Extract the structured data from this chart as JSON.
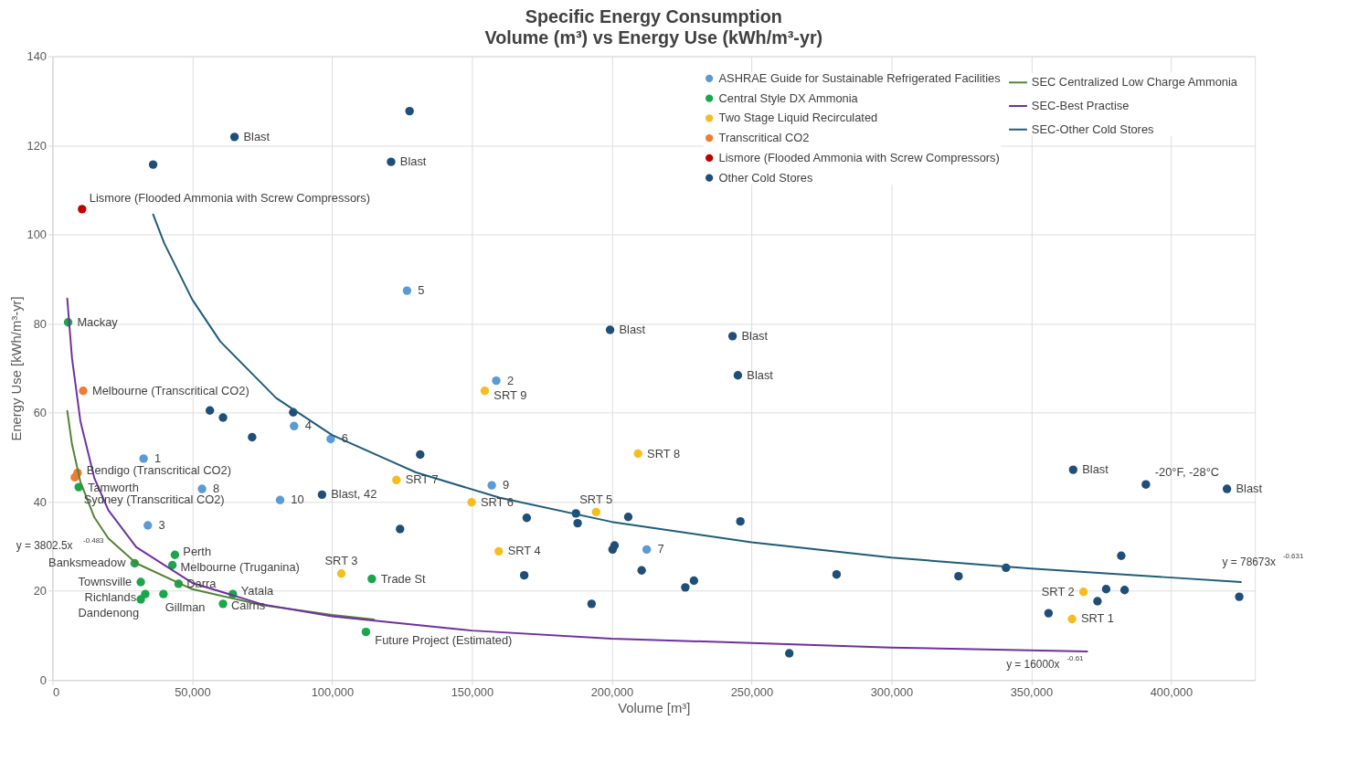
{
  "chart_data": {
    "type": "scatter",
    "title": "Specific Energy Consumption",
    "subtitle": "Volume (m³) vs Energy Use (kWh/m³-yr)",
    "xlabel": "Volume [m³]",
    "ylabel": "Energy Use [kWh/m³-yr]",
    "xlim": [
      0,
      430000
    ],
    "ylim": [
      0,
      140
    ],
    "xticks": [
      0,
      {
        "value": 50000,
        "label": "50,000"
      },
      {
        "value": 100000,
        "label": "100,000"
      },
      {
        "value": 150000,
        "label": "150,000"
      },
      {
        "value": 200000,
        "label": "200,000"
      },
      {
        "value": 250000,
        "label": "250,000"
      },
      {
        "value": 300000,
        "label": "300,000"
      },
      {
        "value": 350000,
        "label": "350,000"
      },
      {
        "value": 400000,
        "label": "400,000"
      }
    ],
    "yticks": [
      0,
      20,
      40,
      60,
      80,
      100,
      120,
      140
    ],
    "grid": true,
    "legend": "top right",
    "marker": "circle",
    "line_style": "solid",
    "series": [
      {
        "name": "ASHRAE Guide for Sustainable Refrigerated Facilities",
        "color": "#5b9bd5",
        "x": [
          32600,
          158700,
          34100,
          86400,
          126800,
          99500,
          212500,
          53500,
          157100,
          81400
        ],
        "values": [
          49.7,
          67.2,
          34.7,
          57.0,
          87.4,
          54.1,
          29.3,
          42.9,
          43.7,
          40.4
        ]
      },
      {
        "name": "Central Style DX Ammonia",
        "color": "#1aa64a",
        "x": [
          5600,
          9400,
          29400,
          43800,
          42900,
          31600,
          45100,
          64500,
          61000,
          39700,
          33200,
          31600,
          114200,
          112100
        ],
        "values": [
          80.3,
          43.3,
          26.2,
          28.1,
          25.8,
          22.0,
          21.6,
          19.3,
          17.1,
          19.3,
          19.3,
          18.1,
          22.7,
          10.8
        ],
        "value_labels": [
          "Mackay",
          "Tamworth",
          "Banksmeadow",
          "Perth",
          "Melbourne (Truganina)",
          "Townsville",
          "Darra",
          "Yatala",
          "Cairns",
          "Gillman",
          "Richlands",
          "Dandenong",
          "Trade St",
          "Future Project (Estimated)"
        ]
      },
      {
        "name": "Two Stage Liquid Recirculated",
        "color": "#f7bd20",
        "x": [
          154600,
          209400,
          123000,
          149900,
          194400,
          159600,
          103300,
          368700,
          364600
        ],
        "values": [
          64.9,
          50.8,
          44.9,
          39.9,
          37.7,
          28.9,
          23.9,
          19.8,
          13.7
        ],
        "value_labels": [
          "SRT 9",
          "SRT 8",
          "SRT 7",
          "SRT 6",
          "SRT 5",
          "SRT 4",
          "SRT 3",
          "SRT 2",
          "SRT 1"
        ]
      },
      {
        "name": "Transcritical CO2",
        "color": "#ed7d31",
        "x": [
          11000,
          9000,
          8000
        ],
        "values": [
          64.9,
          46.5,
          45.5
        ],
        "value_labels": [
          "Melbourne (Transcritical CO2)",
          "Bendigo (Transcritical CO2)",
          "Sydney (Transcritical CO2)"
        ]
      },
      {
        "name": "Lismore (Flooded Ammonia with Screw Compressors)",
        "color": "#c00000",
        "x": [
          10600
        ],
        "values": [
          105.7
        ],
        "value_labels": [
          "Lismore (Flooded Ammonia with Screw Compressors)"
        ]
      },
      {
        "name": "Other Cold Stores",
        "color": "#1f4e79",
        "x": [
          36000,
          65100,
          127700,
          121100,
          199400,
          243200,
          245100,
          56300,
          61000,
          86100,
          71400,
          131500,
          124300,
          96400,
          169600,
          187200,
          187800,
          205900,
          201000,
          200300,
          210700,
          168700,
          229400,
          226300,
          192800,
          246000,
          263500,
          280400,
          324000,
          341000,
          365000,
          391000,
          420000,
          382200,
          376800,
          383400,
          373700,
          356200,
          424400
        ],
        "values": [
          115.7,
          121.9,
          127.7,
          116.3,
          78.6,
          77.2,
          68.4,
          60.5,
          58.9,
          60.1,
          54.5,
          50.6,
          33.9,
          41.6,
          36.4,
          37.4,
          35.2,
          36.6,
          30.2,
          29.3,
          24.6,
          23.5,
          22.3,
          20.8,
          17.1,
          35.6,
          6.0,
          23.7,
          23.3,
          25.2,
          47.2,
          43.9,
          42.9,
          27.9,
          20.4,
          20.2,
          17.7,
          15.0,
          18.7
        ],
        "value_labels": [
          null,
          "Blast",
          null,
          "Blast",
          "Blast",
          "Blast",
          "Blast",
          null,
          null,
          null,
          null,
          null,
          null,
          "Blast, 42",
          null,
          null,
          null,
          null,
          null,
          null,
          null,
          null,
          null,
          null,
          null,
          null,
          null,
          null,
          null,
          null,
          "Blast",
          "-20°F, -28°C",
          "Blast",
          null,
          null,
          null,
          null,
          null,
          null
        ]
      },
      {
        "type": "line",
        "marker": "none",
        "name": "SEC Centralized Low Charge Ammonia",
        "color": "#548235",
        "x": [
          5300,
          7000,
          10000,
          15000,
          20000,
          30000,
          50000,
          75000,
          100000,
          115000
        ],
        "values": [
          60.4,
          52.9,
          44.5,
          36.5,
          31.8,
          26.2,
          20.4,
          16.8,
          14.6,
          13.6
        ]
      },
      {
        "type": "line",
        "marker": "none",
        "name": "SEC-Best Practise",
        "color": "#7030a0",
        "x": [
          5300,
          7000,
          10000,
          15000,
          20000,
          30000,
          50000,
          75000,
          100000,
          150000,
          200000,
          300000,
          370000
        ],
        "values": [
          85.6,
          72.2,
          58.1,
          45.3,
          38.1,
          29.8,
          21.8,
          17.0,
          14.3,
          11.1,
          9.3,
          7.3,
          6.4
        ]
      },
      {
        "type": "line",
        "marker": "none",
        "name": "SEC-Other Cold Stores",
        "color": "#1f5c7a",
        "x": [
          36000,
          40000,
          50000,
          60000,
          80000,
          100000,
          130000,
          160000,
          200000,
          250000,
          300000,
          350000,
          425000
        ],
        "values": [
          104.5,
          98.0,
          85.4,
          76.0,
          63.3,
          55.0,
          46.6,
          40.9,
          35.5,
          30.9,
          27.5,
          25.0,
          22.0
        ]
      }
    ],
    "annotations": [
      {
        "text": "1",
        "x": 32600,
        "y": 49.7
      },
      {
        "text": "2",
        "x": 158700,
        "y": 67.2
      },
      {
        "text": "3",
        "x": 34100,
        "y": 34.7
      },
      {
        "text": "4",
        "x": 86400,
        "y": 57.0
      },
      {
        "text": "5",
        "x": 126800,
        "y": 87.4
      },
      {
        "text": "6",
        "x": 99500,
        "y": 54.1
      },
      {
        "text": "7",
        "x": 212500,
        "y": 29.3
      },
      {
        "text": "8",
        "x": 53500,
        "y": 42.9
      },
      {
        "text": "9",
        "x": 157100,
        "y": 43.7
      },
      {
        "text": "10",
        "x": 81400,
        "y": 40.4
      },
      "y = 3802.5x$^{-0.483}$",
      "y = 78673x$^{-0.631}$",
      "y = 16000x$^{-0.61}$"
    ]
  }
}
